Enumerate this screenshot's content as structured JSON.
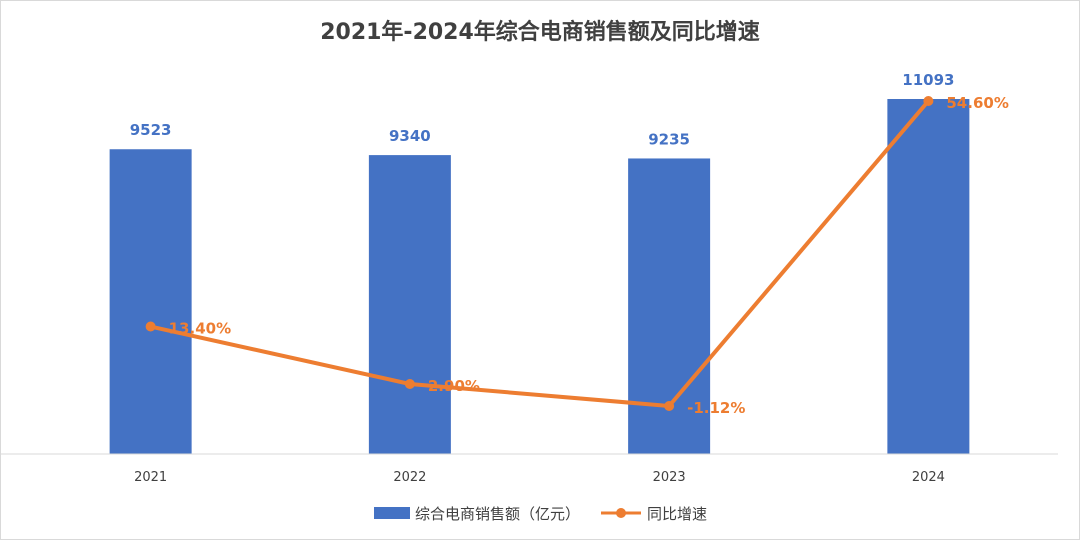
{
  "chart_data": {
    "type": "bar",
    "title": "2021年-2024年综合电商销售额及同比增速",
    "categories": [
      "2021",
      "2022",
      "2023",
      "2024"
    ],
    "series": [
      {
        "name": "综合电商销售额（亿元）",
        "type": "bar",
        "axis": "primary",
        "color": "#4472c4",
        "values": [
          9523,
          9340,
          9235,
          11093
        ],
        "labels": [
          "9523",
          "9340",
          "9235",
          "11093"
        ]
      },
      {
        "name": "同比增速",
        "type": "line",
        "axis": "secondary",
        "color": "#ed7d31",
        "values": [
          13.4,
          2.9,
          -1.12,
          54.6
        ],
        "labels": [
          "13.40%",
          "2.90%",
          "-1.12%",
          "54.60%"
        ]
      }
    ],
    "ylim": [
      0,
      11500
    ],
    "y2lim": [
      -5,
      57
    ],
    "grid": false,
    "legend": "bottom"
  }
}
